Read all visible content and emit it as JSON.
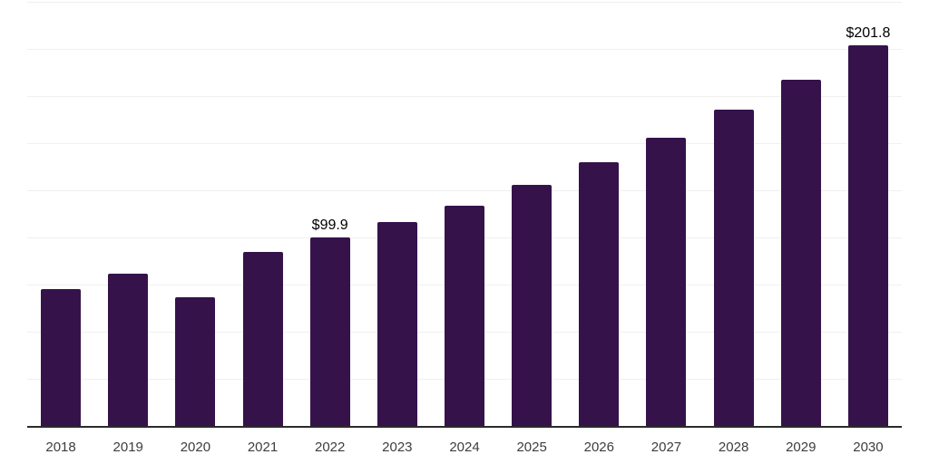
{
  "page": {
    "background": "#ffffff"
  },
  "chart_data": {
    "type": "bar",
    "title": "",
    "xlabel": "",
    "ylabel": "",
    "categories": [
      "2018",
      "2019",
      "2020",
      "2021",
      "2022",
      "2023",
      "2024",
      "2025",
      "2026",
      "2027",
      "2028",
      "2029",
      "2030"
    ],
    "values": [
      72.8,
      81.0,
      68.5,
      92.4,
      99.9,
      108.3,
      116.8,
      128.0,
      140.0,
      152.8,
      167.7,
      183.7,
      201.8
    ],
    "data_labels": [
      {
        "category": "2022",
        "text": "$99.9"
      },
      {
        "category": "2030",
        "text": "$201.8"
      }
    ],
    "ylim": [
      0,
      225
    ],
    "gridline_step": 25,
    "grid": true,
    "legend": false,
    "y_tick_labels_visible": false,
    "colors": {
      "bar": "#36124b",
      "axis_line": "#2b2b2b",
      "gridline": "#f0f0f0",
      "tick_label": "#3d3d3d",
      "value_label": "#000000",
      "background": "#ffffff"
    }
  }
}
